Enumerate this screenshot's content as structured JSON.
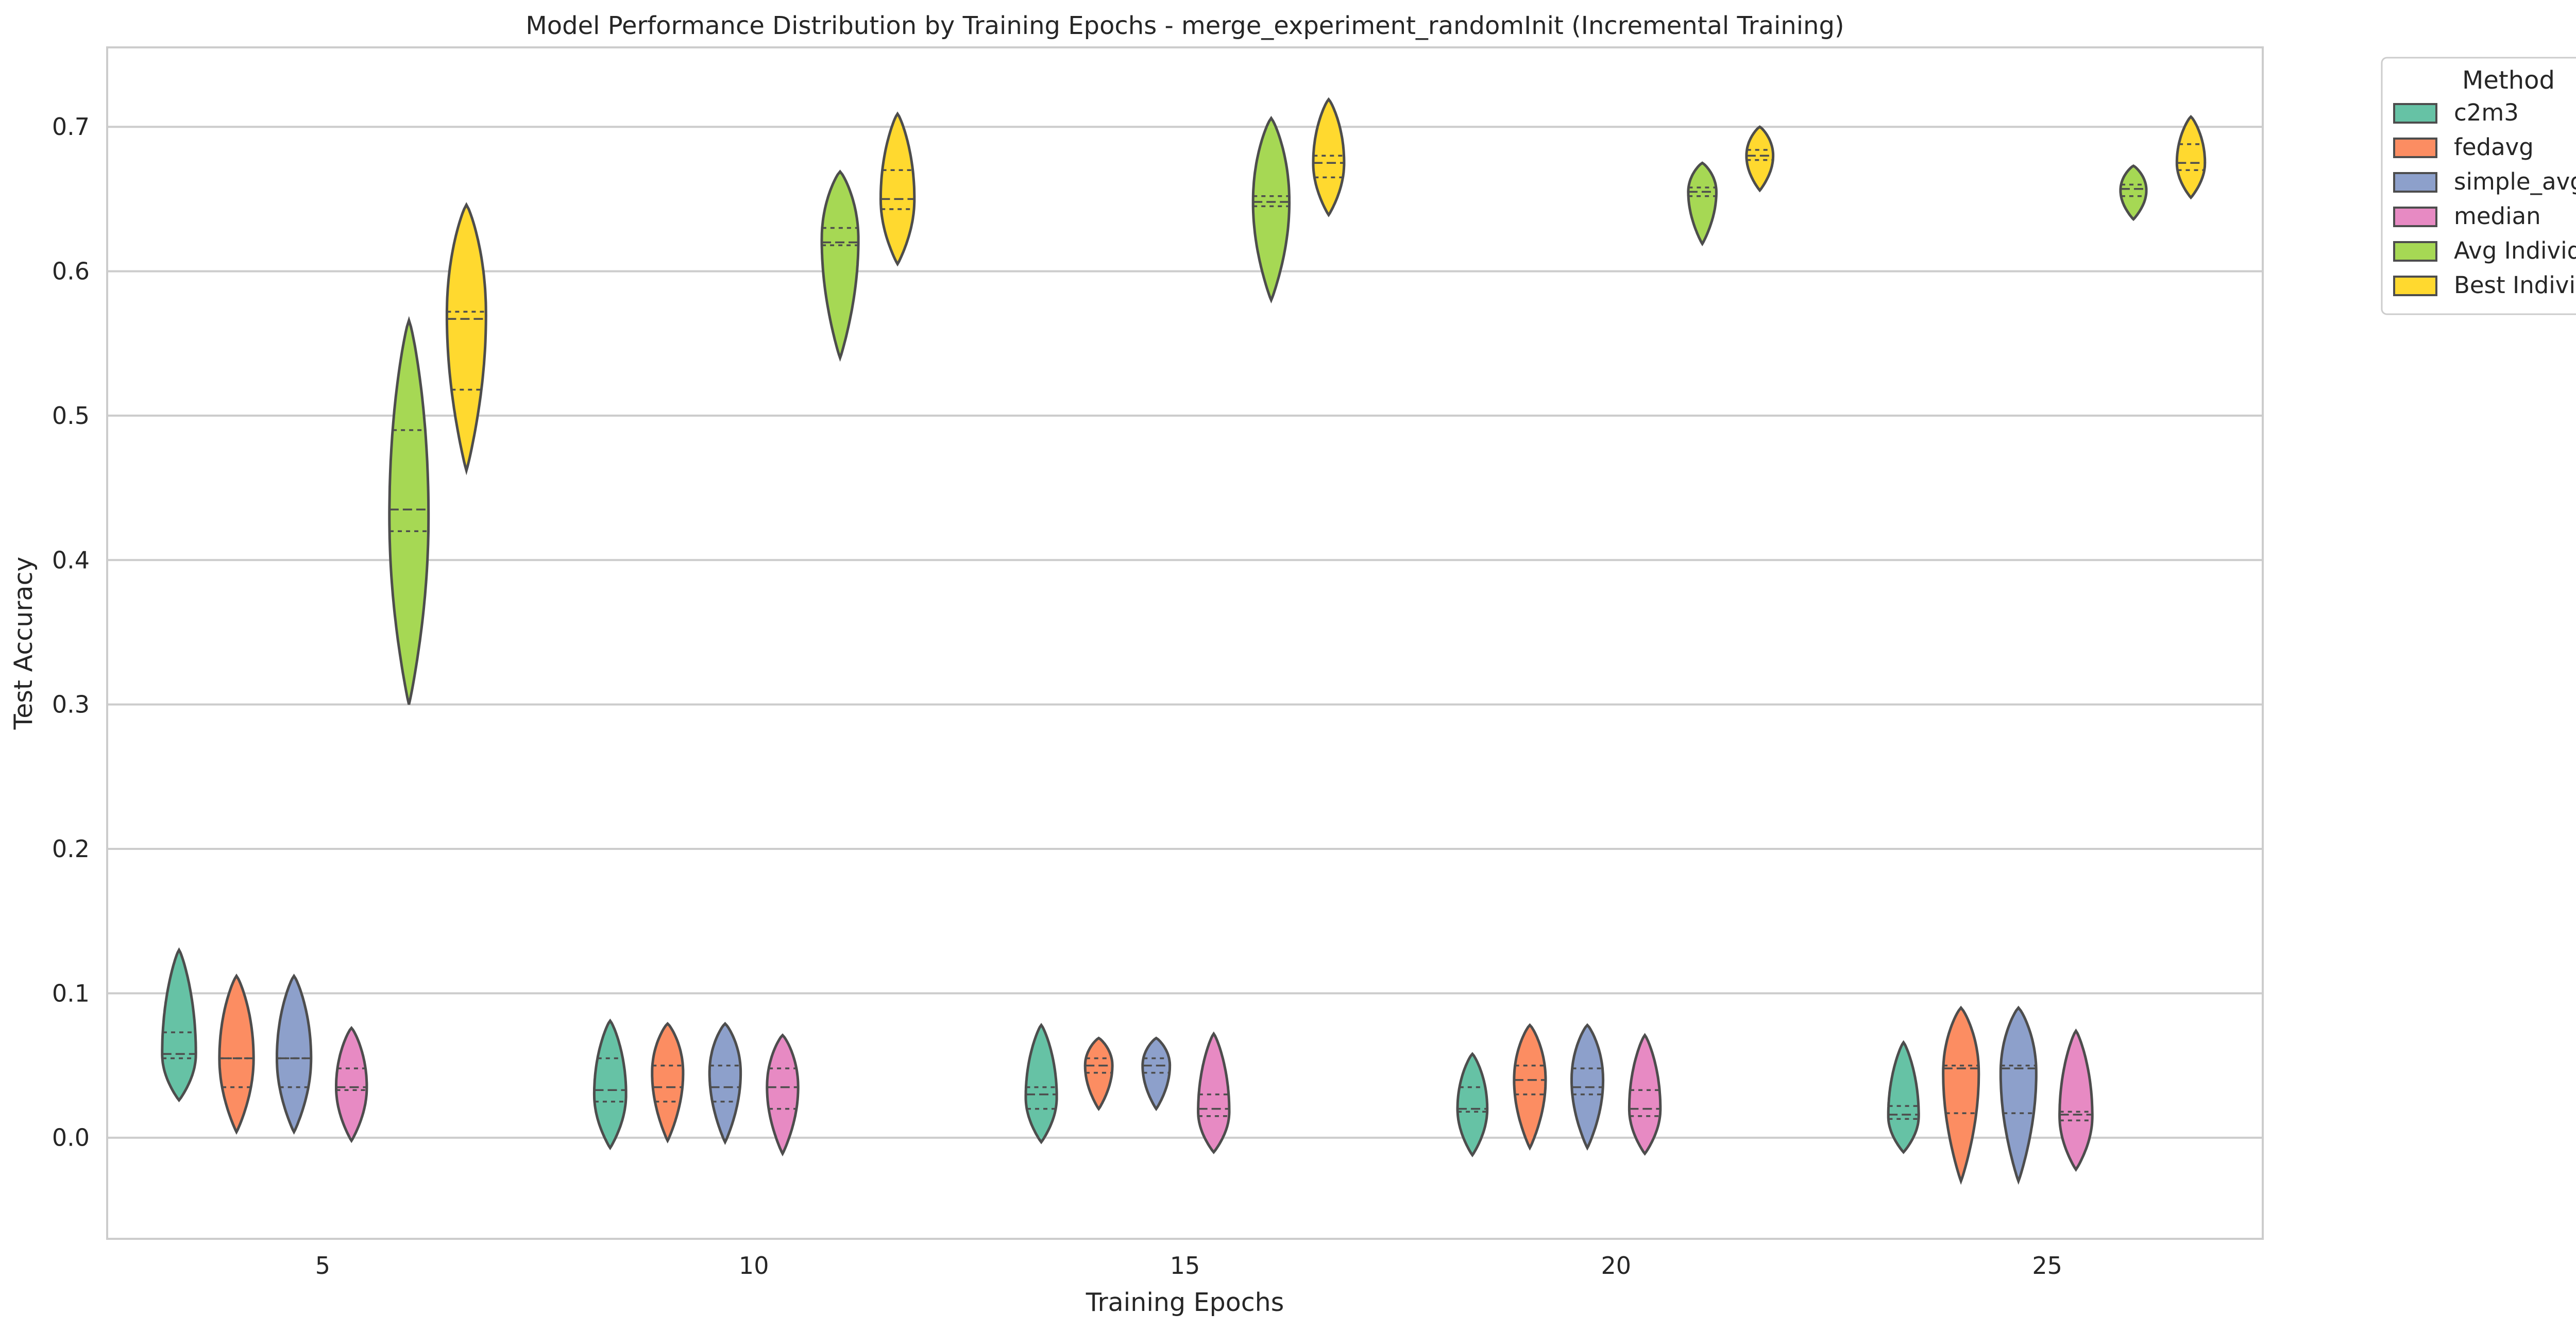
{
  "chart_data": {
    "type": "violin",
    "title": "Model Performance Distribution by Training Epochs - merge_experiment_randomInit (Incremental Training)",
    "xlabel": "Training Epochs",
    "ylabel": "Test Accuracy",
    "ylim": [
      -0.07,
      0.755
    ],
    "yticks": [
      0.0,
      0.1,
      0.2,
      0.3,
      0.4,
      0.5,
      0.6,
      0.7
    ],
    "ytick_labels": [
      "0.0",
      "0.1",
      "0.2",
      "0.3",
      "0.4",
      "0.5",
      "0.6",
      "0.7"
    ],
    "categories": [
      "5",
      "10",
      "15",
      "20",
      "25"
    ],
    "grid": "horizontal",
    "legend": {
      "title": "Method",
      "placement": "outside-top-right"
    },
    "series": [
      {
        "name": "c2m3",
        "color": "#66c2a5",
        "values": [
          {
            "min": 0.026,
            "max": 0.13,
            "peak": 0.058,
            "q1": 0.055,
            "median": 0.058,
            "q3": 0.073
          },
          {
            "min": -0.007,
            "max": 0.081,
            "peak": 0.03,
            "q1": 0.025,
            "median": 0.033,
            "q3": 0.055
          },
          {
            "min": -0.003,
            "max": 0.078,
            "peak": 0.028,
            "q1": 0.02,
            "median": 0.03,
            "q3": 0.035
          },
          {
            "min": -0.012,
            "max": 0.058,
            "peak": 0.02,
            "q1": 0.018,
            "median": 0.02,
            "q3": 0.035
          },
          {
            "min": -0.01,
            "max": 0.066,
            "peak": 0.015,
            "q1": 0.013,
            "median": 0.016,
            "q3": 0.022
          }
        ]
      },
      {
        "name": "fedavg",
        "color": "#fc8d62",
        "values": [
          {
            "min": 0.004,
            "max": 0.112,
            "peak": 0.055,
            "q1": 0.035,
            "median": 0.055,
            "q3": 0.055
          },
          {
            "min": -0.002,
            "max": 0.079,
            "peak": 0.045,
            "q1": 0.025,
            "median": 0.035,
            "q3": 0.05
          },
          {
            "min": 0.02,
            "max": 0.069,
            "peak": 0.05,
            "q1": 0.045,
            "median": 0.05,
            "q3": 0.055
          },
          {
            "min": -0.007,
            "max": 0.078,
            "peak": 0.04,
            "q1": 0.03,
            "median": 0.04,
            "q3": 0.05
          },
          {
            "min": -0.03,
            "max": 0.09,
            "peak": 0.045,
            "q1": 0.017,
            "median": 0.048,
            "q3": 0.05
          }
        ]
      },
      {
        "name": "simple_avg",
        "color": "#8da0cb",
        "values": [
          {
            "min": 0.004,
            "max": 0.112,
            "peak": 0.055,
            "q1": 0.035,
            "median": 0.055,
            "q3": 0.055
          },
          {
            "min": -0.003,
            "max": 0.079,
            "peak": 0.045,
            "q1": 0.025,
            "median": 0.035,
            "q3": 0.05
          },
          {
            "min": 0.02,
            "max": 0.069,
            "peak": 0.05,
            "q1": 0.045,
            "median": 0.05,
            "q3": 0.055
          },
          {
            "min": -0.007,
            "max": 0.078,
            "peak": 0.04,
            "q1": 0.03,
            "median": 0.035,
            "q3": 0.048
          },
          {
            "min": -0.03,
            "max": 0.09,
            "peak": 0.045,
            "q1": 0.017,
            "median": 0.048,
            "q3": 0.05
          }
        ]
      },
      {
        "name": "median",
        "color": "#e78ac3",
        "values": [
          {
            "min": -0.002,
            "max": 0.076,
            "peak": 0.035,
            "q1": 0.033,
            "median": 0.035,
            "q3": 0.048
          },
          {
            "min": -0.011,
            "max": 0.071,
            "peak": 0.035,
            "q1": 0.02,
            "median": 0.035,
            "q3": 0.048
          },
          {
            "min": -0.01,
            "max": 0.072,
            "peak": 0.018,
            "q1": 0.015,
            "median": 0.02,
            "q3": 0.03
          },
          {
            "min": -0.011,
            "max": 0.071,
            "peak": 0.02,
            "q1": 0.015,
            "median": 0.02,
            "q3": 0.033
          },
          {
            "min": -0.022,
            "max": 0.074,
            "peak": 0.015,
            "q1": 0.012,
            "median": 0.016,
            "q3": 0.018
          }
        ]
      },
      {
        "name": "Avg Individual",
        "color": "#a6d854",
        "values": [
          {
            "min": 0.3,
            "max": 0.566,
            "peak": 0.43,
            "q1": 0.42,
            "median": 0.435,
            "q3": 0.49
          },
          {
            "min": 0.54,
            "max": 0.669,
            "peak": 0.622,
            "q1": 0.618,
            "median": 0.62,
            "q3": 0.63
          },
          {
            "min": 0.58,
            "max": 0.706,
            "peak": 0.648,
            "q1": 0.645,
            "median": 0.648,
            "q3": 0.652
          },
          {
            "min": 0.619,
            "max": 0.675,
            "peak": 0.655,
            "q1": 0.652,
            "median": 0.655,
            "q3": 0.658
          },
          {
            "min": 0.636,
            "max": 0.673,
            "peak": 0.656,
            "q1": 0.652,
            "median": 0.657,
            "q3": 0.66
          }
        ]
      },
      {
        "name": "Best Individual",
        "color": "#ffd92f",
        "values": [
          {
            "min": 0.462,
            "max": 0.646,
            "peak": 0.57,
            "q1": 0.518,
            "median": 0.567,
            "q3": 0.572
          },
          {
            "min": 0.605,
            "max": 0.709,
            "peak": 0.65,
            "q1": 0.643,
            "median": 0.65,
            "q3": 0.67
          },
          {
            "min": 0.639,
            "max": 0.719,
            "peak": 0.675,
            "q1": 0.665,
            "median": 0.675,
            "q3": 0.68
          },
          {
            "min": 0.656,
            "max": 0.7,
            "peak": 0.68,
            "q1": 0.677,
            "median": 0.68,
            "q3": 0.684
          },
          {
            "min": 0.651,
            "max": 0.707,
            "peak": 0.675,
            "q1": 0.67,
            "median": 0.675,
            "q3": 0.688
          }
        ]
      }
    ]
  }
}
